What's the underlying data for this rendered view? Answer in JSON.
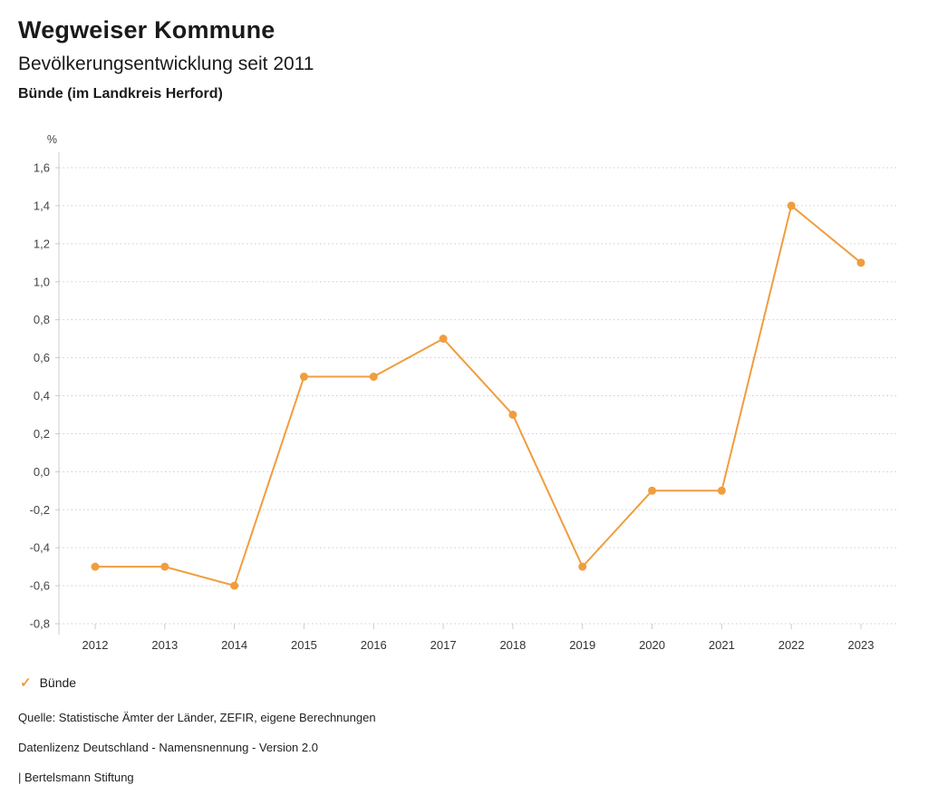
{
  "header": {
    "title": "Wegweiser Kommune",
    "subtitle": "Bevölkerungsentwicklung seit 2011",
    "region": "Bünde (im Landkreis Herford)"
  },
  "legend": {
    "check_icon": "✓",
    "label": "Bünde"
  },
  "footer": {
    "source": "Quelle: Statistische Ämter der Länder, ZEFIR, eigene Berechnungen",
    "license": "Datenlizenz Deutschland - Namensnennung - Version 2.0",
    "attribution": "| Bertelsmann Stiftung"
  },
  "chart_data": {
    "type": "line",
    "title": "Bevölkerungsentwicklung seit 2011",
    "unit": "%",
    "x": [
      2012,
      2013,
      2014,
      2015,
      2016,
      2017,
      2018,
      2019,
      2020,
      2021,
      2022,
      2023
    ],
    "series": [
      {
        "name": "Bünde",
        "color": "#f09d3f",
        "values": [
          -0.5,
          -0.5,
          -0.6,
          0.5,
          0.5,
          0.7,
          0.3,
          -0.5,
          -0.1,
          -0.1,
          1.4,
          1.1
        ]
      }
    ],
    "ylim": [
      -0.8,
      1.6
    ],
    "ytick_step": 0.2,
    "grid": "horizontal-dotted",
    "legend_position": "bottom-left",
    "decimal_separator": ","
  },
  "colors": {
    "accent": "#f09d3f",
    "grid": "#cccccc",
    "axis_line": "#cccccc",
    "axis_text": "#444444",
    "text": "#1a1a1a"
  }
}
